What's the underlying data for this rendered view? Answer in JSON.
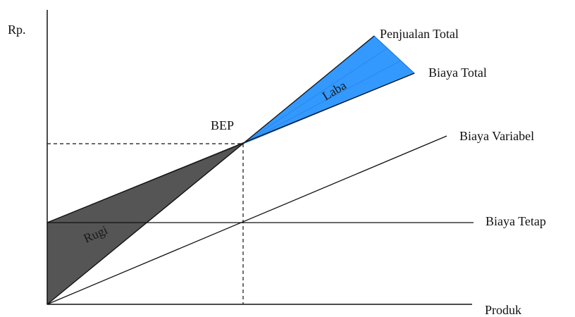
{
  "diagram": {
    "y_axis_label": "Rp.",
    "x_axis_label": "Produk",
    "bep_label": "BEP",
    "lines": {
      "total_sales": "Penjualan Total",
      "total_cost": "Biaya Total",
      "variable_cost": "Biaya Variabel",
      "fixed_cost": "Biaya Tetap"
    },
    "regions": {
      "profit": "Laba",
      "loss": "Rugi"
    },
    "colors": {
      "profit_fill": "#3399ff",
      "loss_fill": "#555555",
      "line": "#111111"
    }
  }
}
